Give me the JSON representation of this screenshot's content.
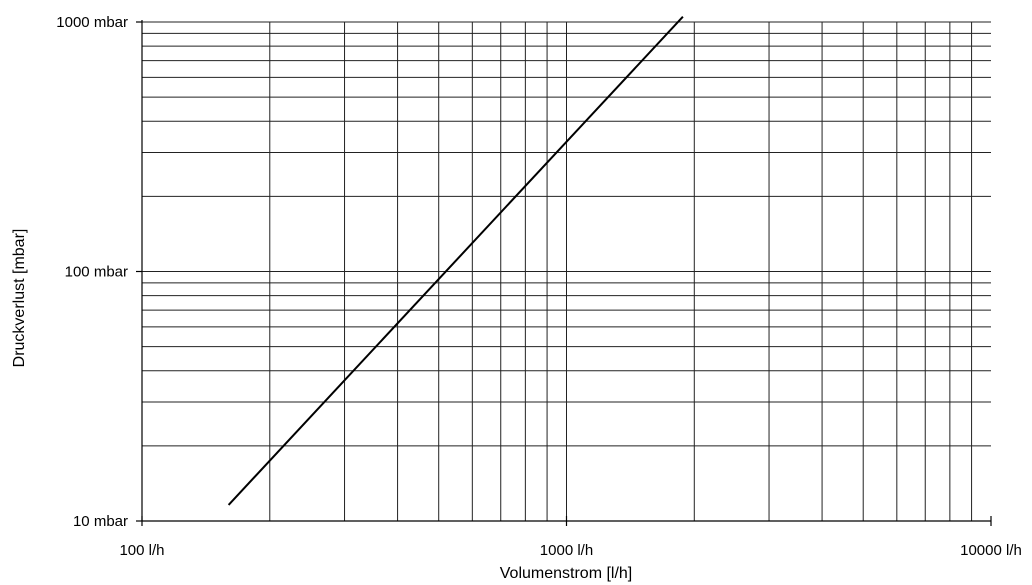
{
  "chart_data": {
    "type": "line",
    "x_scale": "log",
    "y_scale": "log",
    "xlim": [
      100,
      10000
    ],
    "ylim": [
      10,
      1000
    ],
    "xlabel": "Volumenstrom [l/h]",
    "ylabel": "Druckverlust [mbar]",
    "x_tick_labels": [
      {
        "value": 100,
        "label": "100 l/h"
      },
      {
        "value": 1000,
        "label": "1000 l/h"
      },
      {
        "value": 10000,
        "label": "10000 l/h"
      }
    ],
    "y_tick_labels": [
      {
        "value": 10,
        "label": "10 mbar"
      },
      {
        "value": 100,
        "label": "100 mbar"
      },
      {
        "value": 1000,
        "label": "1000 mbar"
      }
    ],
    "grid": true,
    "series": [
      {
        "points": [
          {
            "x": 160,
            "y": 11.6
          },
          {
            "x": 1880,
            "y": 1050
          }
        ],
        "color": "#000000"
      }
    ]
  }
}
